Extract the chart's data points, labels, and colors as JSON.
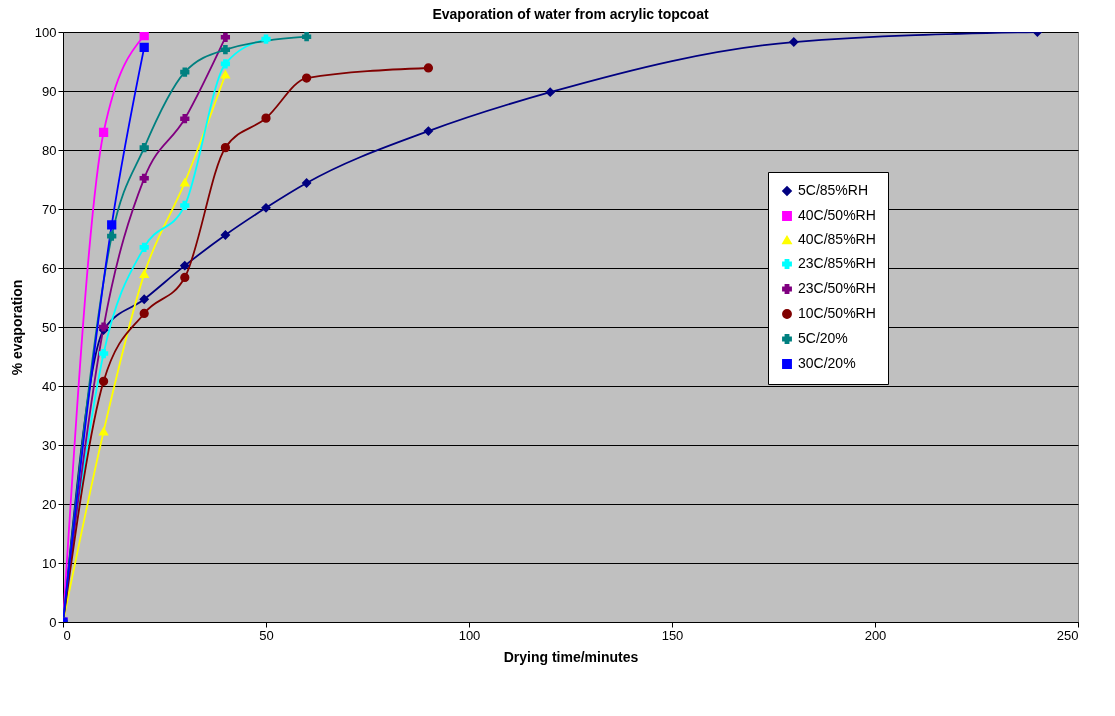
{
  "chart_data": {
    "type": "line",
    "title": "Evaporation of water from acrylic topcoat",
    "xlabel": "Drying time/minutes",
    "ylabel": "% evaporation",
    "xlim": [
      0,
      250
    ],
    "xticks": [
      0,
      50,
      100,
      150,
      200,
      250
    ],
    "ylim": [
      0,
      100
    ],
    "yticks": [
      0,
      10,
      20,
      30,
      40,
      50,
      60,
      70,
      80,
      90,
      100
    ],
    "grid": "y",
    "legend": "right",
    "series": [
      {
        "name": "5C/85%RH",
        "color": "#000080",
        "marker": "diamond",
        "x": [
          0,
          10,
          20,
          30,
          40,
          50,
          60,
          90,
          120,
          180,
          240
        ],
        "values": [
          0,
          49.5,
          54.7,
          60.4,
          65.6,
          70.2,
          74.4,
          83.2,
          89.8,
          98.3,
          100
        ]
      },
      {
        "name": "40C/50%RH",
        "color": "#ff00ff",
        "marker": "square",
        "x": [
          0,
          10,
          20
        ],
        "values": [
          0,
          83,
          99.4
        ]
      },
      {
        "name": "40C/85%RH",
        "color": "#ffff00",
        "marker": "triangle",
        "x": [
          0,
          10,
          20,
          30,
          40
        ],
        "values": [
          0,
          32.3,
          59,
          74.5,
          92.8
        ]
      },
      {
        "name": "23C/85%RH",
        "color": "#00ffff",
        "marker": "cross",
        "x": [
          0,
          10,
          20,
          30,
          40,
          50
        ],
        "values": [
          0,
          45.5,
          63.5,
          70.6,
          94.6,
          98.8
        ]
      },
      {
        "name": "23C/50%RH",
        "color": "#800080",
        "marker": "cross",
        "x": [
          0,
          10,
          20,
          30,
          40
        ],
        "values": [
          0,
          50,
          75.2,
          85.3,
          99.1
        ]
      },
      {
        "name": "10C/50%RH",
        "color": "#800000",
        "marker": "circle",
        "x": [
          0,
          10,
          20,
          30,
          40,
          50,
          60,
          90
        ],
        "values": [
          0,
          40.8,
          52.3,
          58.4,
          80.4,
          85.4,
          92.2,
          93.9
        ]
      },
      {
        "name": "5C/20%",
        "color": "#008080",
        "marker": "cross",
        "x": [
          0,
          12,
          20,
          30,
          40,
          60
        ],
        "values": [
          0,
          65.4,
          80.4,
          93.2,
          97,
          99.2
        ]
      },
      {
        "name": "30C/20%",
        "color": "#0000ff",
        "marker": "square",
        "x": [
          0,
          12,
          20
        ],
        "values": [
          0,
          67.3,
          97.4
        ]
      }
    ]
  }
}
